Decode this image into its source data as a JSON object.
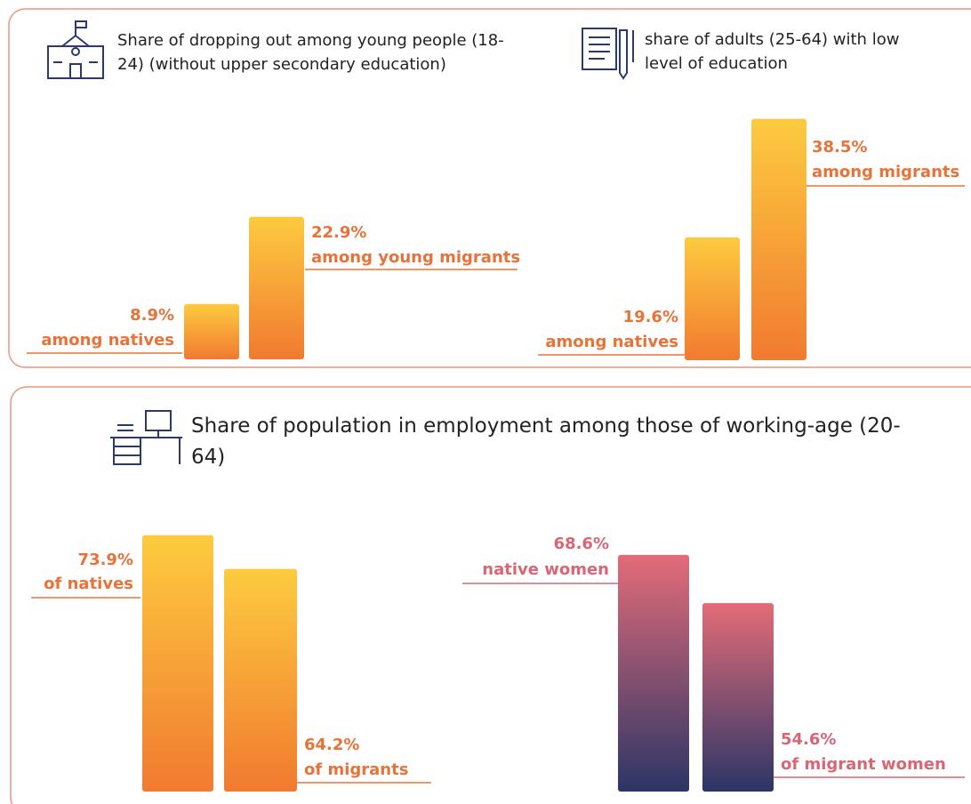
{
  "chart_data": [
    {
      "type": "bar",
      "title": "Share of dropping out among young people (18-24) (without upper secondary education)",
      "categories": [
        "among natives",
        "among young migrants"
      ],
      "values": [
        8.9,
        22.9
      ],
      "value_labels": [
        "8.9%",
        "22.9%"
      ],
      "gradient": [
        "#fdcb3f",
        "#f17a30"
      ],
      "label_color": "#e8733a"
    },
    {
      "type": "bar",
      "title": "share of adults (25-64) with low level of education",
      "categories": [
        "among natives",
        "among migrants"
      ],
      "values": [
        19.6,
        38.5
      ],
      "value_labels": [
        "19.6%",
        "38.5%"
      ],
      "gradient": [
        "#fdcb3f",
        "#f17a30"
      ],
      "label_color": "#e8733a"
    },
    {
      "type": "bar",
      "title": "Share of population in employment among those of working-age (20-64)",
      "categories": [
        "of natives",
        "of migrants"
      ],
      "values": [
        73.9,
        64.2
      ],
      "value_labels": [
        "73.9%",
        "64.2%"
      ],
      "gradient": [
        "#fdcb3f",
        "#f17a30"
      ],
      "label_color": "#e8733a"
    },
    {
      "type": "bar",
      "categories": [
        "native women",
        "of migrant women"
      ],
      "values": [
        68.6,
        54.6
      ],
      "value_labels": [
        "68.6%",
        "54.6%"
      ],
      "gradient": [
        "#e36c78",
        "#2b3566"
      ],
      "label_color": "#d96675"
    }
  ]
}
